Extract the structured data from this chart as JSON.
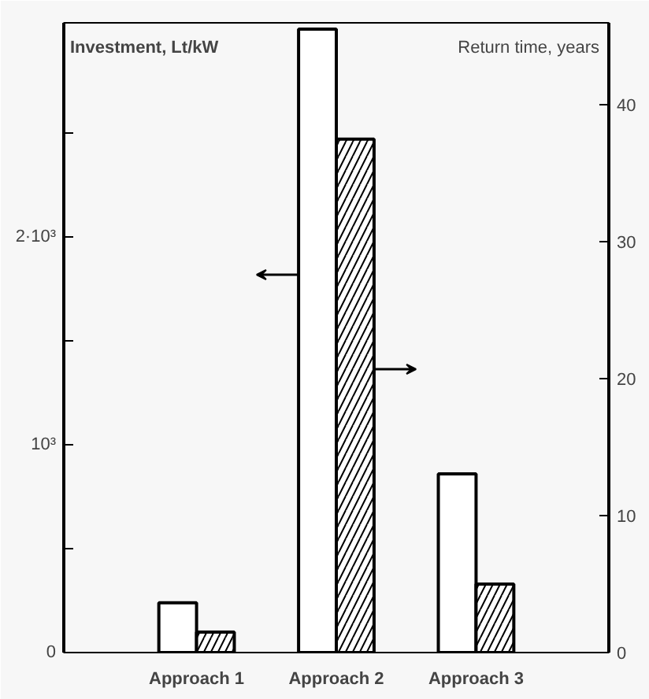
{
  "chart_data": {
    "type": "bar",
    "ylabel": "Investment, Lt/kW",
    "y2label": "Return time, years",
    "categories": [
      "Approach 1",
      "Approach 2",
      "Approach 3"
    ],
    "series": [
      {
        "color": "#ffffff",
        "values": [
          240,
          3000,
          860
        ]
      },
      {
        "color": "#000000",
        "axis": "y2",
        "values": [
          1.5,
          37.5,
          5
        ]
      }
    ],
    "ylim": [
      0,
      3030
    ],
    "yticks": [
      0,
      {
        "value": 500,
        "label": null
      },
      {
        "value": 1000,
        "label": "10³"
      },
      {
        "value": 1500,
        "label": null
      },
      {
        "value": 2000,
        "label": "2·10³"
      },
      {
        "value": 2500,
        "label": null
      }
    ],
    "y2lim": [
      0,
      46
    ],
    "y2ticks": [
      0,
      10,
      20,
      30,
      40
    ],
    "grid": false
  }
}
